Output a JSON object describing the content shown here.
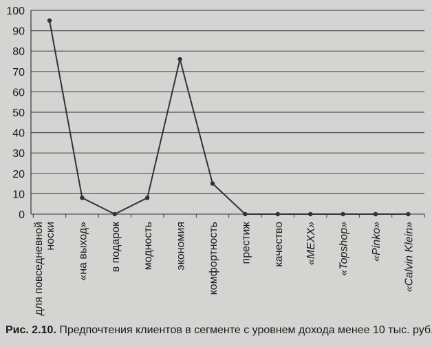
{
  "caption": {
    "figure_label": "Рис. 2.10.",
    "text": "Предпочтения клиентов в сегменте с уровнем дохода менее 10 тыс. руб."
  },
  "chart_data": {
    "type": "line",
    "categories": [
      "для повседневной носки",
      "«на выход»",
      "в подарок",
      "модность",
      "экономия",
      "комфортность",
      "престиж",
      "качество",
      "«MEXX»",
      "«Topshop»",
      "«Pinko»",
      "«Calvin Klein»"
    ],
    "italic_categories": [
      "«MEXX»",
      "«Topshop»",
      "«Pinko»",
      "«Calvin Klein»"
    ],
    "values": [
      95,
      8,
      0,
      8,
      76,
      15,
      0,
      0,
      0,
      0,
      0,
      0
    ],
    "ylim": [
      0,
      100
    ],
    "yticks": [
      0,
      10,
      20,
      30,
      40,
      50,
      60,
      70,
      80,
      90,
      100
    ],
    "grid": true,
    "colors": {
      "line": "#333333",
      "grid": "#555555",
      "text": "#1a1a1a"
    }
  }
}
